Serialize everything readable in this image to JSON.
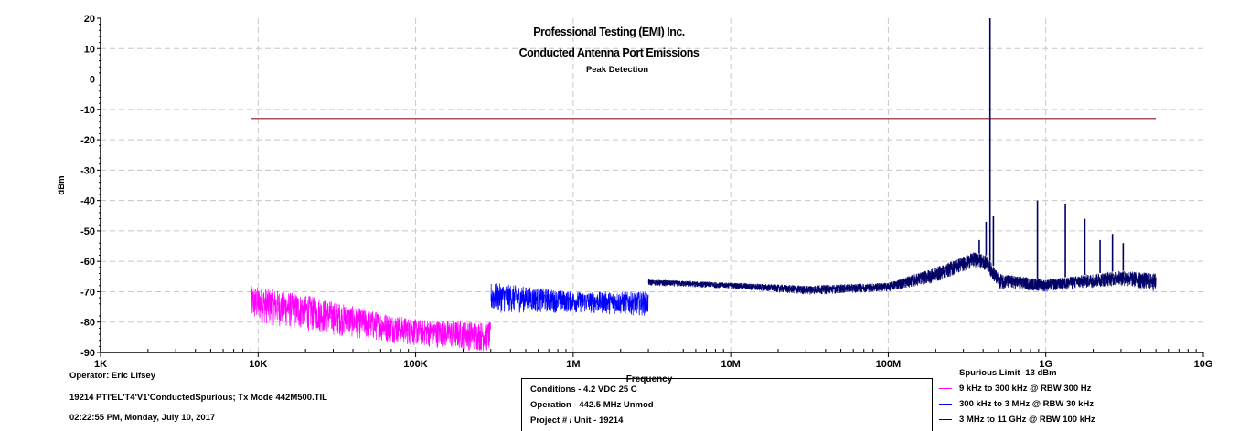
{
  "chart_data": {
    "type": "line",
    "title": "Professional Testing (EMI) Inc.",
    "subtitle": "Conducted Antenna Port Emissions",
    "subsubtitle": "Peak Detection",
    "xlabel": "Frequency",
    "ylabel": "dBm",
    "x_scale": "log",
    "xlim_hz": [
      1000,
      10000000000
    ],
    "ylim": [
      -90,
      20
    ],
    "grid": true,
    "x_ticks": [
      {
        "value": 1000,
        "label": "1K"
      },
      {
        "value": 10000,
        "label": "10K"
      },
      {
        "value": 100000,
        "label": "100K"
      },
      {
        "value": 1000000,
        "label": "1M"
      },
      {
        "value": 10000000,
        "label": "10M"
      },
      {
        "value": 100000000,
        "label": "100M"
      },
      {
        "value": 1000000000,
        "label": "1G"
      },
      {
        "value": 10000000000,
        "label": "10G"
      }
    ],
    "y_ticks": [
      20,
      10,
      0,
      -10,
      -20,
      -30,
      -40,
      -50,
      -60,
      -70,
      -80,
      -90
    ],
    "series": [
      {
        "name": "Spurious Limit -13 dBm",
        "color": "#8b1a1a",
        "points": [
          [
            9000,
            -13
          ],
          [
            5000000000,
            -13
          ]
        ]
      },
      {
        "name": "9 kHz to 300 kHz @ RBW 300 Hz",
        "color": "#ff00ff",
        "noise": true,
        "envelope": [
          [
            9000,
            -68,
            -80
          ],
          [
            20000,
            -71,
            -83
          ],
          [
            50000,
            -76,
            -86
          ],
          [
            100000,
            -79,
            -88
          ],
          [
            300000,
            -80,
            -90
          ]
        ]
      },
      {
        "name": "300 kHz to 3 MHz @ RBW 30 kHz",
        "color": "#0000ff",
        "noise": true,
        "envelope": [
          [
            300000,
            -67,
            -77
          ],
          [
            1000000,
            -70,
            -77
          ],
          [
            3000000,
            -70,
            -78
          ]
        ]
      },
      {
        "name": "3 MHz to 11 GHz @ RBW 100 kHz",
        "color": "#000066",
        "noise": true,
        "envelope": [
          [
            3000000,
            -66,
            -68
          ],
          [
            10000000,
            -67,
            -69
          ],
          [
            30000000,
            -68,
            -71
          ],
          [
            100000000,
            -67,
            -70
          ],
          [
            200000000,
            -62,
            -67
          ],
          [
            350000000,
            -57,
            -62
          ],
          [
            420000000,
            -58,
            -63
          ],
          [
            500000000,
            -64,
            -69
          ],
          [
            1000000000,
            -66,
            -70
          ],
          [
            3000000000,
            -63,
            -68
          ],
          [
            5000000000,
            -64,
            -70
          ]
        ],
        "spikes": [
          {
            "x": 442500000,
            "y": 20
          },
          {
            "x": 378000000,
            "y": -53
          },
          {
            "x": 418000000,
            "y": -47
          },
          {
            "x": 465000000,
            "y": -45
          },
          {
            "x": 885000000,
            "y": -40
          },
          {
            "x": 1330000000,
            "y": -41
          },
          {
            "x": 1770000000,
            "y": -46
          },
          {
            "x": 2210000000,
            "y": -53
          },
          {
            "x": 2650000000,
            "y": -51
          },
          {
            "x": 3100000000,
            "y": -54
          }
        ]
      }
    ]
  },
  "footer": {
    "operator": "Operator: Eric Lifsey",
    "file": "19214 PTI'EL'T4'V1'ConductedSpurious; Tx Mode 442M500.TIL",
    "timestamp": "02:22:55 PM, Monday, July 10, 2017",
    "conditions": "Conditions - 4.2 VDC 25 C",
    "operation": "Operation - 442.5 MHz Unmod",
    "project": "Project # / Unit - 19214"
  }
}
